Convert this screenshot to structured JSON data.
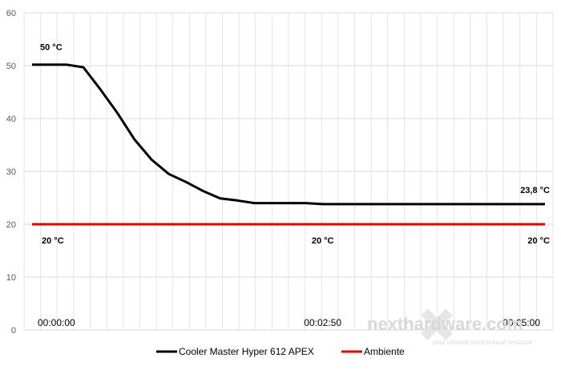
{
  "chart_data": {
    "type": "line",
    "ylim": [
      0,
      60
    ],
    "yticks": [
      "0",
      "10",
      "20",
      "30",
      "40",
      "50",
      "60"
    ],
    "grid": true,
    "legend_position": "bottom",
    "xlim_seconds": [
      0,
      300
    ],
    "x_tick_labels": [
      {
        "x": 0,
        "label": "00:00:00"
      },
      {
        "x": 170,
        "label": "00:02:50"
      },
      {
        "x": 300,
        "label": "00:05:00"
      }
    ],
    "series": [
      {
        "name": "Cooler Master Hyper 612 APEX",
        "color": "#000000",
        "points": [
          [
            0,
            50.2
          ],
          [
            10,
            50.2
          ],
          [
            20,
            50.2
          ],
          [
            30,
            49.7
          ],
          [
            40,
            45.5
          ],
          [
            50,
            41
          ],
          [
            60,
            36
          ],
          [
            70,
            32.2
          ],
          [
            80,
            29.5
          ],
          [
            90,
            28
          ],
          [
            100,
            26.3
          ],
          [
            110,
            24.9
          ],
          [
            120,
            24.5
          ],
          [
            130,
            24.0
          ],
          [
            140,
            24.0
          ],
          [
            150,
            24.0
          ],
          [
            160,
            24.0
          ],
          [
            170,
            23.8
          ],
          [
            180,
            23.8
          ],
          [
            200,
            23.8
          ],
          [
            220,
            23.8
          ],
          [
            240,
            23.8
          ],
          [
            260,
            23.8
          ],
          [
            280,
            23.8
          ],
          [
            300,
            23.8
          ]
        ]
      },
      {
        "name": "Ambiente",
        "color": "#e00000",
        "points": [
          [
            0,
            20
          ],
          [
            300,
            20
          ]
        ]
      }
    ],
    "annotations": [
      {
        "text": "50 °C",
        "x": 0,
        "y": 50.2,
        "color": "#000000"
      },
      {
        "text": "23,8 °C",
        "x": 300,
        "y": 23.8,
        "color": "#000000"
      },
      {
        "text": "20 °C",
        "x": 0,
        "y": 20,
        "color": "#000000"
      },
      {
        "text": "20 °C",
        "x": 170,
        "y": 20,
        "color": "#000000"
      },
      {
        "text": "20 °C",
        "x": 300,
        "y": 20,
        "color": "#000000"
      }
    ]
  },
  "watermark": {
    "brand": "nexthardware.com",
    "tagline": "your ultimate professional resource"
  }
}
